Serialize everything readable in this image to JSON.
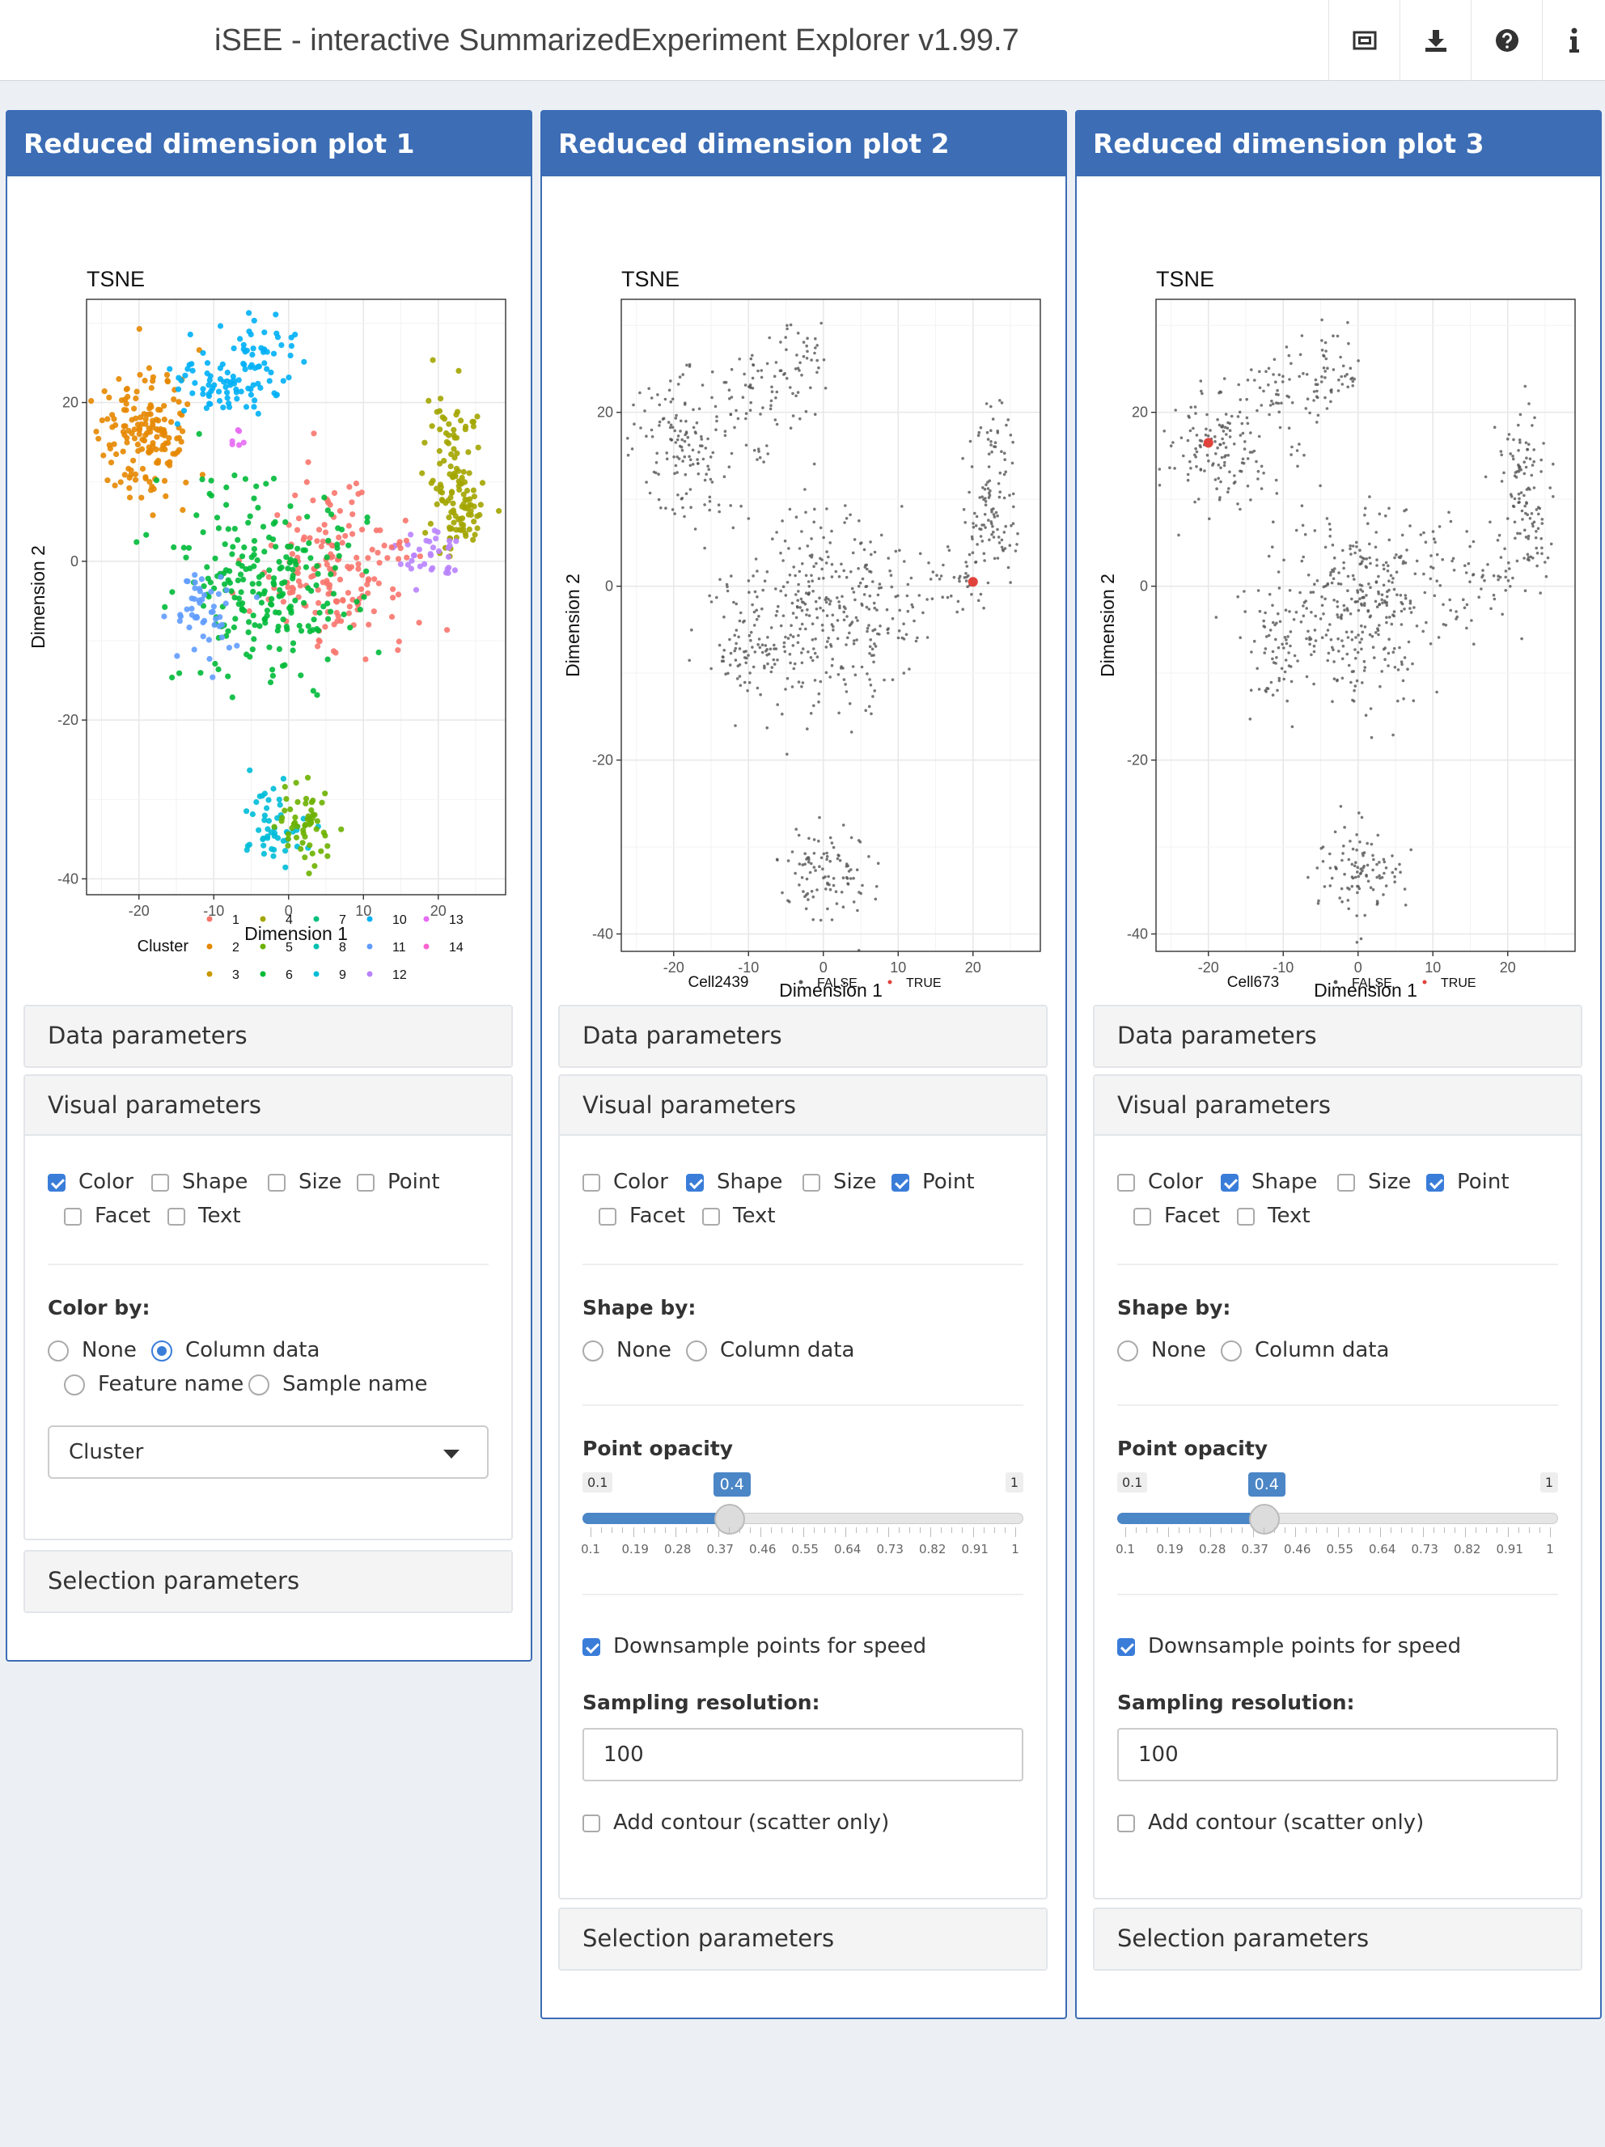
{
  "header": {
    "title": "iSEE - interactive SummarizedExperiment Explorer v1.99.7",
    "buttons": [
      {
        "name": "image-icon"
      },
      {
        "name": "download-icon"
      },
      {
        "name": "help-icon"
      },
      {
        "name": "info-icon"
      }
    ]
  },
  "panels": [
    {
      "title": "Reduced dimension plot 1",
      "data_params": "Data parameters",
      "visual_params": "Visual parameters",
      "selection_params": "Selection parameters",
      "checkboxes": {
        "color": "Color",
        "shape": "Shape",
        "size": "Size",
        "point": "Point",
        "facet": "Facet",
        "text": "Text"
      },
      "checked": {
        "color": true,
        "shape": false,
        "size": false,
        "point": false,
        "facet": false,
        "text": false
      },
      "color_by": {
        "label": "Color by:",
        "options": [
          "None",
          "Column data",
          "Feature name",
          "Sample name"
        ],
        "selected": "Column data",
        "select_value": "Cluster"
      }
    },
    {
      "title": "Reduced dimension plot 2",
      "data_params": "Data parameters",
      "visual_params": "Visual parameters",
      "selection_params": "Selection parameters",
      "checkboxes": {
        "color": "Color",
        "shape": "Shape",
        "size": "Size",
        "point": "Point",
        "facet": "Facet",
        "text": "Text"
      },
      "checked": {
        "color": false,
        "shape": true,
        "size": false,
        "point": true,
        "facet": false,
        "text": false
      },
      "shape_by": {
        "label": "Shape by:",
        "options": [
          "None",
          "Column data"
        ]
      },
      "opacity": {
        "label": "Point opacity",
        "min": "0.1",
        "max": "1",
        "value": "0.4"
      },
      "downsample": "Downsample points for speed",
      "downsample_checked": true,
      "sampling": {
        "label": "Sampling resolution:",
        "value": "100"
      },
      "contour": "Add contour (scatter only)"
    },
    {
      "title": "Reduced dimension plot 3",
      "data_params": "Data parameters",
      "visual_params": "Visual parameters",
      "selection_params": "Selection parameters",
      "checkboxes": {
        "color": "Color",
        "shape": "Shape",
        "size": "Size",
        "point": "Point",
        "facet": "Facet",
        "text": "Text"
      },
      "checked": {
        "color": false,
        "shape": true,
        "size": false,
        "point": true,
        "facet": false,
        "text": false
      },
      "shape_by": {
        "label": "Shape by:",
        "options": [
          "None",
          "Column data"
        ]
      },
      "opacity": {
        "label": "Point opacity",
        "min": "0.1",
        "max": "1",
        "value": "0.4"
      },
      "downsample": "Downsample points for speed",
      "downsample_checked": true,
      "sampling": {
        "label": "Sampling resolution:",
        "value": "100"
      },
      "contour": "Add contour (scatter only)"
    }
  ],
  "slider_ticks": [
    "0.1",
    "0.19",
    "0.28",
    "0.37",
    "0.46",
    "0.55",
    "0.64",
    "0.73",
    "0.82",
    "0.91",
    "1"
  ],
  "chart_data": [
    {
      "type": "scatter",
      "title": "TSNE",
      "xlabel": "Dimension 1",
      "ylabel": "Dimension 2",
      "xlim": [
        -27,
        29
      ],
      "ylim": [
        -42,
        33
      ],
      "xticks": [
        -20,
        -10,
        0,
        10,
        20
      ],
      "yticks": [
        -40,
        -20,
        0,
        20
      ],
      "legend": {
        "title": "Cluster",
        "placement": "bottom",
        "entries": [
          "1",
          "2",
          "3",
          "4",
          "5",
          "6",
          "7",
          "8",
          "9",
          "10",
          "11",
          "12",
          "13",
          "14"
        ],
        "colors": [
          "#f8766d",
          "#e58700",
          "#c99800",
          "#a3a500",
          "#6bb100",
          "#00ba38",
          "#00bf7d",
          "#00c0af",
          "#00bcd8",
          "#00b0f6",
          "#619cff",
          "#b983ff",
          "#e76bf3",
          "#fd61d1"
        ]
      },
      "clusters": [
        {
          "cluster": "2",
          "cx": -19,
          "cy": 16,
          "sx": 3.2,
          "sy": 4.0,
          "n": 160
        },
        {
          "cluster": "10",
          "cx": -9,
          "cy": 22,
          "sx": 3.5,
          "sy": 2.8,
          "n": 70
        },
        {
          "cluster": "10",
          "cx": -3,
          "cy": 26,
          "sx": 2.0,
          "sy": 2.4,
          "n": 40
        },
        {
          "cluster": "13",
          "cx": -7,
          "cy": 15,
          "sx": 0.8,
          "sy": 0.6,
          "n": 6
        },
        {
          "cluster": "4",
          "cx": 22,
          "cy": 13,
          "sx": 1.6,
          "sy": 4.5,
          "n": 80
        },
        {
          "cluster": "4",
          "cx": 23,
          "cy": 6,
          "sx": 2.0,
          "sy": 3.0,
          "n": 50
        },
        {
          "cluster": "12",
          "cx": 19,
          "cy": 1,
          "sx": 2.4,
          "sy": 1.4,
          "n": 35
        },
        {
          "cluster": "1",
          "cx": 7,
          "cy": -1,
          "sx": 5.5,
          "sy": 5.0,
          "n": 170
        },
        {
          "cluster": "6",
          "cx": -3,
          "cy": -3,
          "sx": 6.0,
          "sy": 6.0,
          "n": 230
        },
        {
          "cluster": "11",
          "cx": -11,
          "cy": -7,
          "sx": 1.8,
          "sy": 3.0,
          "n": 50
        },
        {
          "cluster": "9",
          "cx": -2,
          "cy": -33,
          "sx": 2.5,
          "sy": 2.6,
          "n": 50
        },
        {
          "cluster": "5",
          "cx": 2,
          "cy": -33,
          "sx": 1.8,
          "sy": 2.8,
          "n": 55
        }
      ]
    },
    {
      "type": "scatter",
      "title": "TSNE",
      "xlabel": "Dimension 1",
      "ylabel": "Dimension 2",
      "xlim": [
        -27,
        29
      ],
      "ylim": [
        -42,
        33
      ],
      "xticks": [
        -20,
        -10,
        0,
        10,
        20
      ],
      "yticks": [
        -40,
        -20,
        0,
        20
      ],
      "legend": {
        "title": "Cell2439",
        "placement": "bottom",
        "entries": [
          "FALSE",
          "TRUE"
        ],
        "colors": [
          "#555555",
          "#e0433b"
        ]
      },
      "highlight": {
        "x": 20,
        "y": 0.5,
        "label": "TRUE"
      }
    },
    {
      "type": "scatter",
      "title": "TSNE",
      "xlabel": "Dimension 1",
      "ylabel": "Dimension 2",
      "xlim": [
        -27,
        29
      ],
      "ylim": [
        -42,
        33
      ],
      "xticks": [
        -20,
        -10,
        0,
        10,
        20
      ],
      "yticks": [
        -40,
        -20,
        0,
        20
      ],
      "legend": {
        "title": "Cell673",
        "placement": "bottom",
        "entries": [
          "FALSE",
          "TRUE"
        ],
        "colors": [
          "#555555",
          "#e0433b"
        ]
      },
      "highlight": {
        "x": -20,
        "y": 16.5,
        "label": "TRUE"
      }
    }
  ]
}
